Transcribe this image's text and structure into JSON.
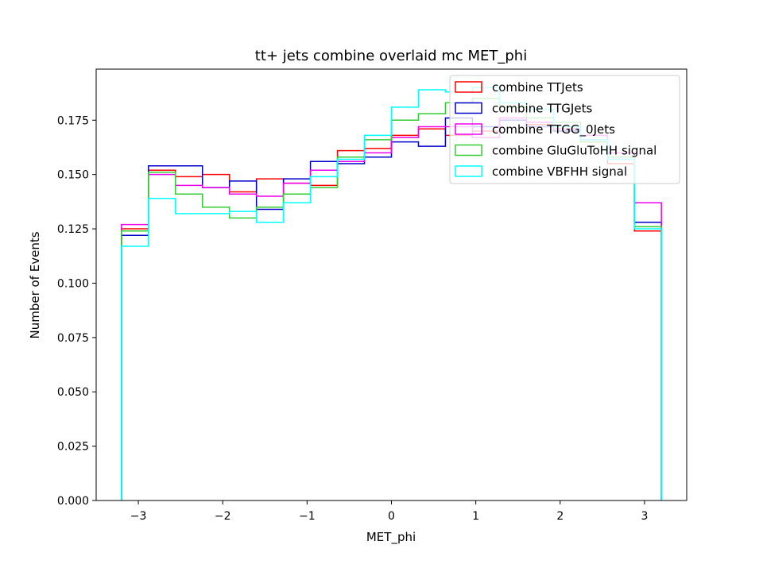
{
  "chart_data": {
    "type": "line",
    "style": "step-histogram",
    "title": "tt+ jets combine overlaid mc MET_phi",
    "xlabel": "MET_phi",
    "ylabel": "Number of Events",
    "xlim": [
      -3.5,
      3.5
    ],
    "ylim": [
      0,
      0.1985
    ],
    "x_ticks": [
      -3,
      -2,
      -1,
      0,
      1,
      2,
      3
    ],
    "x_tick_labels": [
      "−3",
      "−2",
      "−1",
      "0",
      "1",
      "2",
      "3"
    ],
    "y_ticks": [
      0.0,
      0.025,
      0.05,
      0.075,
      0.1,
      0.125,
      0.15,
      0.175
    ],
    "y_tick_labels": [
      "0.000",
      "0.025",
      "0.050",
      "0.075",
      "0.100",
      "0.125",
      "0.150",
      "0.175"
    ],
    "grid": false,
    "legend_position": "top-right",
    "bin_edges": [
      -3.2,
      -2.88,
      -2.56,
      -2.24,
      -1.92,
      -1.6,
      -1.28,
      -0.96,
      -0.64,
      -0.32,
      0.0,
      0.32,
      0.64,
      0.96,
      1.28,
      1.6,
      1.92,
      2.24,
      2.56,
      2.88,
      3.2
    ],
    "series": [
      {
        "name": "combine TTJets",
        "color": "#ff0000",
        "values": [
          0.125,
          0.152,
          0.149,
          0.15,
          0.142,
          0.148,
          0.146,
          0.145,
          0.161,
          0.162,
          0.168,
          0.171,
          0.168,
          0.17,
          0.176,
          0.173,
          0.17,
          0.165,
          0.155,
          0.124
        ]
      },
      {
        "name": "combine TTGJets",
        "color": "#0000cc",
        "values": [
          0.122,
          0.154,
          0.154,
          0.144,
          0.147,
          0.134,
          0.148,
          0.156,
          0.155,
          0.158,
          0.165,
          0.163,
          0.176,
          0.172,
          0.175,
          0.172,
          0.17,
          0.166,
          0.157,
          0.128
        ]
      },
      {
        "name": "combine TTGG_0Jets",
        "color": "#ee00ee",
        "values": [
          0.127,
          0.15,
          0.145,
          0.144,
          0.141,
          0.14,
          0.146,
          0.152,
          0.156,
          0.16,
          0.167,
          0.172,
          0.172,
          0.167,
          0.176,
          0.174,
          0.171,
          0.168,
          0.16,
          0.137
        ]
      },
      {
        "name": "combine GluGluToHH signal",
        "color": "#33cc33",
        "values": [
          0.124,
          0.151,
          0.141,
          0.135,
          0.13,
          0.135,
          0.141,
          0.144,
          0.158,
          0.166,
          0.175,
          0.178,
          0.183,
          0.185,
          0.181,
          0.176,
          0.174,
          0.165,
          0.158,
          0.126
        ]
      },
      {
        "name": "combine VBFHH signal",
        "color": "#00ffff",
        "values": [
          0.117,
          0.139,
          0.132,
          0.132,
          0.133,
          0.128,
          0.137,
          0.149,
          0.157,
          0.168,
          0.181,
          0.189,
          0.188,
          0.19,
          0.183,
          0.18,
          0.172,
          0.166,
          0.157,
          0.125
        ]
      }
    ]
  }
}
